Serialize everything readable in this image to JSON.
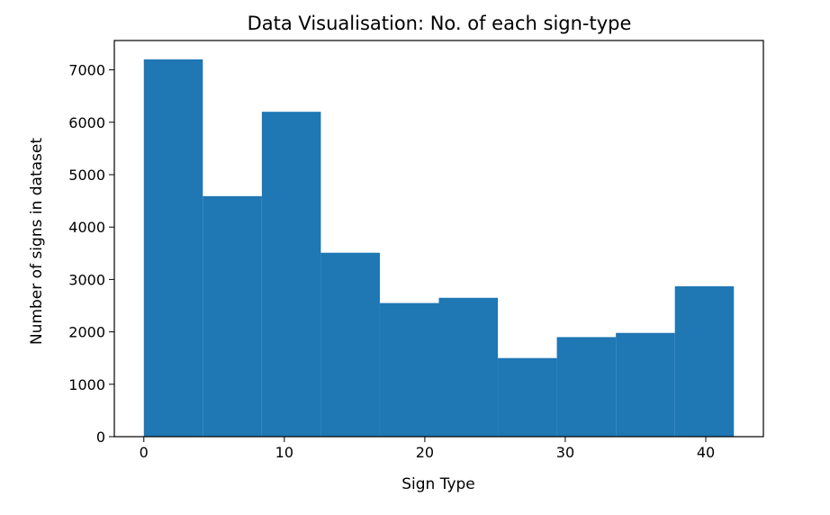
{
  "chart_data": {
    "type": "bar",
    "title": "Data Visualisation: No. of each sign-type",
    "xlabel": "Sign Type",
    "ylabel": "Number of signs in dataset",
    "bar_color": "#1f77b4",
    "bins": [
      {
        "x0": 0.0,
        "x1": 4.2,
        "value": 7200
      },
      {
        "x0": 4.2,
        "x1": 8.4,
        "value": 4590
      },
      {
        "x0": 8.4,
        "x1": 12.6,
        "value": 6200
      },
      {
        "x0": 12.6,
        "x1": 16.8,
        "value": 3510
      },
      {
        "x0": 16.8,
        "x1": 21.0,
        "value": 2550
      },
      {
        "x0": 21.0,
        "x1": 25.2,
        "value": 2650
      },
      {
        "x0": 25.2,
        "x1": 29.4,
        "value": 1500
      },
      {
        "x0": 29.4,
        "x1": 33.6,
        "value": 1900
      },
      {
        "x0": 33.6,
        "x1": 37.8,
        "value": 1980
      },
      {
        "x0": 37.8,
        "x1": 42.0,
        "value": 2870
      }
    ],
    "xlim": [
      -2.1,
      44.1
    ],
    "ylim": [
      0,
      7560
    ],
    "xticks": [
      0,
      10,
      20,
      30,
      40
    ],
    "yticks": [
      0,
      1000,
      2000,
      3000,
      4000,
      5000,
      6000,
      7000
    ],
    "grid": false
  }
}
